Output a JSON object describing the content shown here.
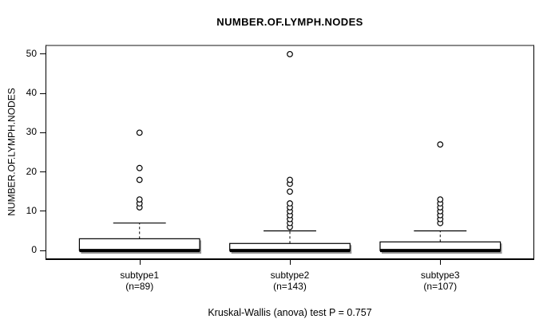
{
  "title": "NUMBER.OF.LYMPH.NODES",
  "caption": "Kruskal-Wallis (anova) test P = 0.757",
  "chart_data": {
    "type": "boxplot",
    "title": "NUMBER.OF.LYMPH.NODES",
    "ylabel": "NUMBER.OF.LYMPH.NODES",
    "xlabel": "",
    "ylim": [
      -2,
      52
    ],
    "yticks": [
      0,
      10,
      20,
      30,
      40,
      50
    ],
    "grid": false,
    "categories": [
      "subtype1",
      "subtype2",
      "subtype3"
    ],
    "category_sublabels": [
      "(n=89)",
      "(n=143)",
      "(n=107)"
    ],
    "groups": [
      {
        "label": "subtype1",
        "sublabel": "(n=89)",
        "n": 89,
        "whisker_low": 0,
        "q1": 0,
        "median": 0,
        "q3": 3,
        "whisker_high": 7,
        "outliers": [
          11,
          12,
          13,
          18,
          21,
          30
        ]
      },
      {
        "label": "subtype2",
        "sublabel": "(n=143)",
        "n": 143,
        "whisker_low": 0,
        "q1": 0,
        "median": 0,
        "q3": 1.8,
        "whisker_high": 5,
        "outliers": [
          6,
          7,
          8,
          9,
          10,
          11,
          12,
          15,
          17,
          18,
          50
        ]
      },
      {
        "label": "subtype3",
        "sublabel": "(n=107)",
        "n": 107,
        "whisker_low": 0,
        "q1": 0,
        "median": 0,
        "q3": 2.2,
        "whisker_high": 5,
        "outliers": [
          7,
          8,
          9,
          10,
          11,
          12,
          13,
          27
        ]
      }
    ],
    "annotation": "Kruskal-Wallis (anova) test P = 0.757",
    "colors": {
      "line": "#000000",
      "box_fill": "#ffffff",
      "shadow": "#999999",
      "frame_top": "#8a8a8a",
      "text": "#000000"
    }
  }
}
